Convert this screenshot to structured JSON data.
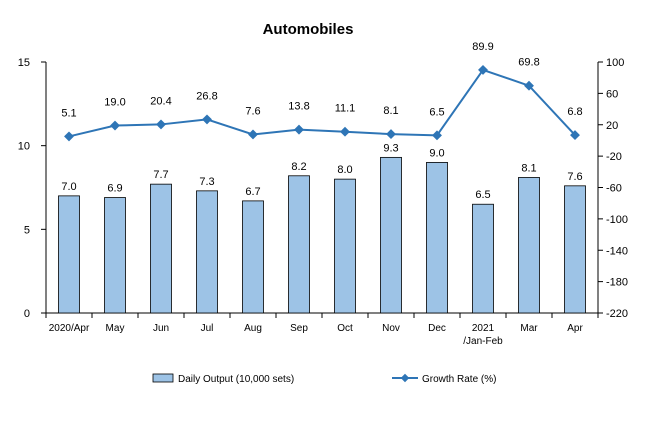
{
  "chart_data": {
    "type": "bar+line",
    "title": "Automobiles",
    "categories": [
      [
        "2020/Apr"
      ],
      [
        "May"
      ],
      [
        "Jun"
      ],
      [
        "Jul"
      ],
      [
        "Aug"
      ],
      [
        "Sep"
      ],
      [
        "Oct"
      ],
      [
        "Nov"
      ],
      [
        "Dec"
      ],
      [
        "2021",
        "/Jan-Feb"
      ],
      [
        "Mar"
      ],
      [
        "Apr"
      ]
    ],
    "series": [
      {
        "name": "Daily Output (10,000 sets)",
        "kind": "bar",
        "axis": "left",
        "color": "#9DC3E6",
        "values": [
          7.0,
          6.9,
          7.7,
          7.3,
          6.7,
          8.2,
          8.0,
          9.3,
          9.0,
          6.5,
          8.1,
          7.6
        ],
        "labels": [
          "7.0",
          "6.9",
          "7.7",
          "7.3",
          "6.7",
          "8.2",
          "8.0",
          "9.3",
          "9.0",
          "6.5",
          "8.1",
          "7.6"
        ]
      },
      {
        "name": "Growth Rate (%)",
        "kind": "line",
        "axis": "right",
        "color": "#2E75B6",
        "values": [
          5.1,
          19.0,
          20.4,
          26.8,
          7.6,
          13.8,
          11.1,
          8.1,
          6.5,
          89.9,
          69.8,
          6.8
        ],
        "labels": [
          "5.1",
          "19.0",
          "20.4",
          "26.8",
          "7.6",
          "13.8",
          "11.1",
          "8.1",
          "6.5",
          "89.9",
          "69.8",
          "6.8"
        ]
      }
    ],
    "y_left": {
      "range": [
        0,
        15
      ],
      "ticks": [
        "0",
        "5",
        "10",
        "15"
      ]
    },
    "y_right": {
      "range": [
        -220,
        100
      ],
      "ticks": [
        "100",
        "60",
        "20",
        "-20",
        "-60",
        "-100",
        "-140",
        "-180",
        "-220"
      ]
    },
    "grid": false,
    "legend": "bottom"
  }
}
